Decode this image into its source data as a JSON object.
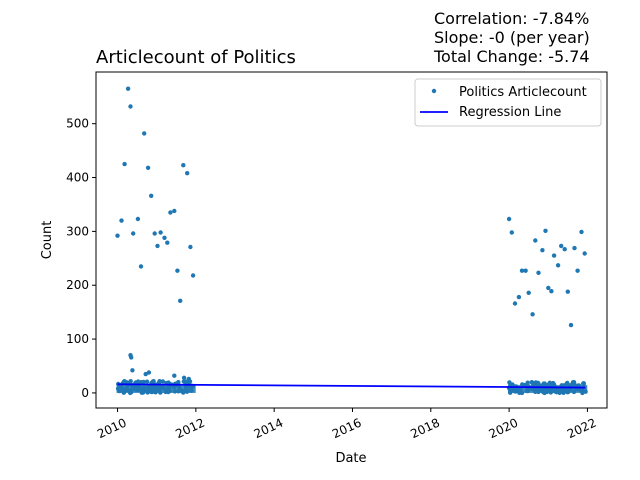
{
  "chart_data": {
    "type": "scatter",
    "title": "Articlecount of Politics",
    "stats": {
      "correlation": "Correlation: -7.84%",
      "slope": "Slope: -0 (per year)",
      "total_change": "Total Change: -5.74"
    },
    "xlabel": "Date",
    "ylabel": "Count",
    "xlim": [
      2009.45,
      2022.5
    ],
    "ylim": [
      -28,
      596
    ],
    "x_ticks": [
      "2010",
      "2012",
      "2014",
      "2016",
      "2018",
      "2020",
      "2022"
    ],
    "x_tick_values": [
      2010,
      2012,
      2014,
      2016,
      2018,
      2020,
      2022
    ],
    "y_ticks": [
      "0",
      "100",
      "200",
      "300",
      "400",
      "500"
    ],
    "y_tick_values": [
      0,
      100,
      200,
      300,
      400,
      500
    ],
    "legend": {
      "placement": "top-right",
      "entries": [
        "Politics Articlecount",
        "Regression Line"
      ]
    },
    "colors": {
      "points": "#1f77b4",
      "regression": "#0000ff"
    },
    "series": [
      {
        "name": "Politics Articlecount",
        "outliers": [
          {
            "x": 2010.0,
            "y": 292
          },
          {
            "x": 2010.1,
            "y": 320
          },
          {
            "x": 2010.18,
            "y": 425
          },
          {
            "x": 2010.27,
            "y": 565
          },
          {
            "x": 2010.33,
            "y": 532
          },
          {
            "x": 2010.4,
            "y": 296
          },
          {
            "x": 2010.52,
            "y": 323
          },
          {
            "x": 2010.6,
            "y": 235
          },
          {
            "x": 2010.68,
            "y": 482
          },
          {
            "x": 2010.78,
            "y": 418
          },
          {
            "x": 2010.86,
            "y": 366
          },
          {
            "x": 2010.95,
            "y": 296
          },
          {
            "x": 2011.02,
            "y": 273
          },
          {
            "x": 2011.1,
            "y": 298
          },
          {
            "x": 2011.2,
            "y": 288
          },
          {
            "x": 2011.27,
            "y": 279
          },
          {
            "x": 2011.35,
            "y": 335
          },
          {
            "x": 2011.45,
            "y": 338
          },
          {
            "x": 2011.53,
            "y": 227
          },
          {
            "x": 2011.6,
            "y": 171
          },
          {
            "x": 2011.68,
            "y": 423
          },
          {
            "x": 2011.78,
            "y": 408
          },
          {
            "x": 2011.86,
            "y": 271
          },
          {
            "x": 2011.93,
            "y": 218
          },
          {
            "x": 2010.33,
            "y": 70
          },
          {
            "x": 2010.35,
            "y": 66
          },
          {
            "x": 2010.38,
            "y": 42
          },
          {
            "x": 2010.72,
            "y": 35
          },
          {
            "x": 2010.8,
            "y": 38
          },
          {
            "x": 2011.45,
            "y": 32
          },
          {
            "x": 2011.7,
            "y": 28
          },
          {
            "x": 2011.82,
            "y": 26
          },
          {
            "x": 2020.0,
            "y": 323
          },
          {
            "x": 2020.07,
            "y": 298
          },
          {
            "x": 2020.15,
            "y": 166
          },
          {
            "x": 2020.25,
            "y": 178
          },
          {
            "x": 2020.33,
            "y": 227
          },
          {
            "x": 2020.42,
            "y": 227
          },
          {
            "x": 2020.5,
            "y": 186
          },
          {
            "x": 2020.6,
            "y": 146
          },
          {
            "x": 2020.67,
            "y": 283
          },
          {
            "x": 2020.75,
            "y": 223
          },
          {
            "x": 2020.85,
            "y": 265
          },
          {
            "x": 2020.93,
            "y": 301
          },
          {
            "x": 2021.0,
            "y": 195
          },
          {
            "x": 2021.08,
            "y": 189
          },
          {
            "x": 2021.15,
            "y": 255
          },
          {
            "x": 2021.25,
            "y": 237
          },
          {
            "x": 2021.33,
            "y": 273
          },
          {
            "x": 2021.42,
            "y": 267
          },
          {
            "x": 2021.5,
            "y": 188
          },
          {
            "x": 2021.58,
            "y": 126
          },
          {
            "x": 2021.67,
            "y": 269
          },
          {
            "x": 2021.75,
            "y": 227
          },
          {
            "x": 2021.85,
            "y": 299
          },
          {
            "x": 2021.93,
            "y": 259
          }
        ],
        "bands": [
          {
            "x_start": 2010.0,
            "x_end": 2011.97,
            "y_min": 0,
            "y_max": 22
          },
          {
            "x_start": 2020.0,
            "x_end": 2021.97,
            "y_min": 0,
            "y_max": 20
          }
        ]
      },
      {
        "name": "Regression Line",
        "x": [
          2010.0,
          2021.95
        ],
        "y": [
          16,
          10
        ]
      }
    ]
  }
}
